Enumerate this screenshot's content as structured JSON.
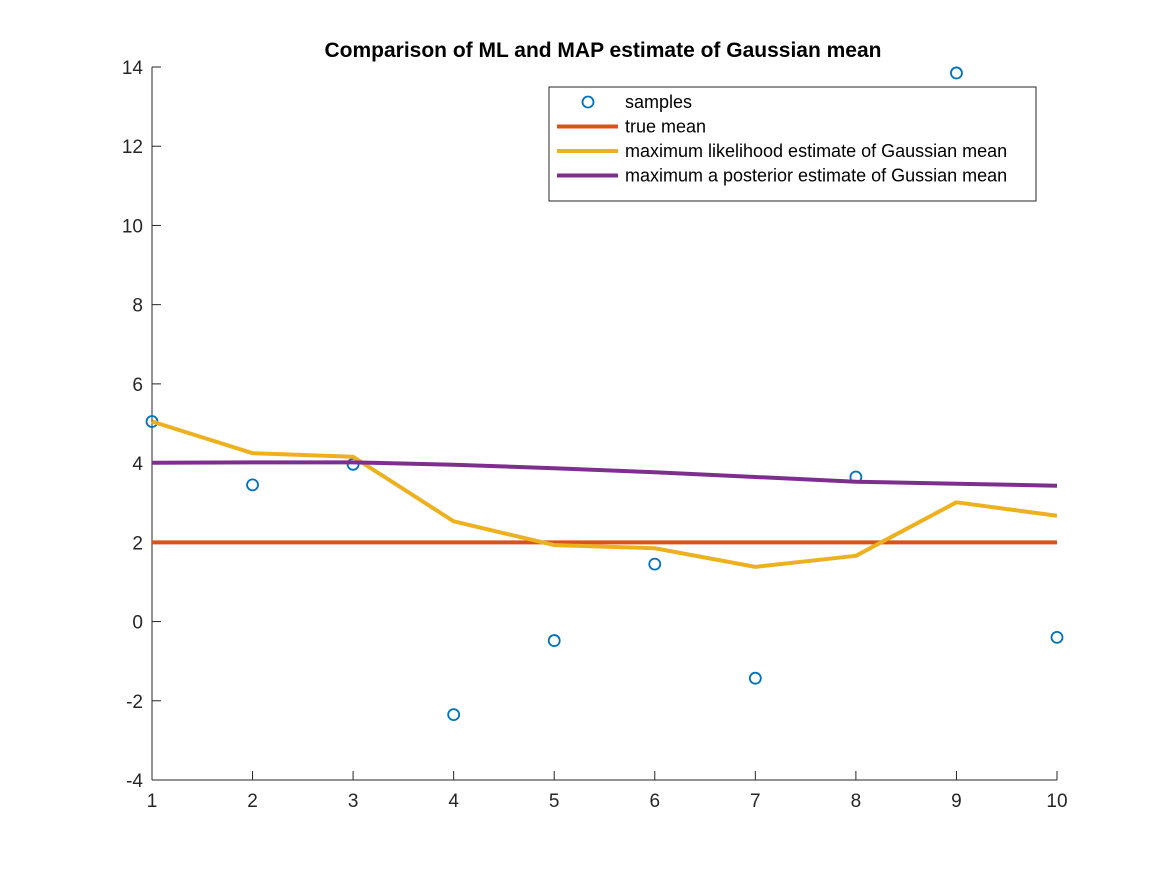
{
  "chart_data": {
    "type": "line",
    "title": "Comparison of ML and MAP estimate of Gaussian mean",
    "xlabel": "",
    "ylabel": "",
    "xlim": [
      1,
      10
    ],
    "ylim": [
      -4,
      14
    ],
    "xticks": [
      1,
      2,
      3,
      4,
      5,
      6,
      7,
      8,
      9,
      10
    ],
    "yticks": [
      -4,
      -2,
      0,
      2,
      4,
      6,
      8,
      10,
      12,
      14
    ],
    "grid": false,
    "legend_position": "top-right",
    "x": [
      1,
      2,
      3,
      4,
      5,
      6,
      7,
      8,
      9,
      10
    ],
    "series": [
      {
        "name": "samples",
        "style": "marker",
        "color": "#0072BD",
        "values": [
          5.05,
          3.45,
          3.97,
          -2.35,
          -0.48,
          1.45,
          -1.43,
          3.65,
          13.85,
          -0.4
        ]
      },
      {
        "name": "true mean",
        "style": "line",
        "color": "#D95319",
        "values": [
          2,
          2,
          2,
          2,
          2,
          2,
          2,
          2,
          2,
          2
        ]
      },
      {
        "name": "maximum likelihood estimate of Gaussian mean",
        "style": "line",
        "color": "#EDB120",
        "values": [
          5.05,
          4.25,
          4.16,
          2.53,
          1.93,
          1.85,
          1.38,
          1.66,
          3.01,
          2.67
        ]
      },
      {
        "name": "maximum a posterior estimate of Gussian mean",
        "style": "line",
        "color": "#7E2F8E",
        "values": [
          4.01,
          4.02,
          4.02,
          3.96,
          3.87,
          3.77,
          3.65,
          3.53,
          3.48,
          3.43
        ]
      }
    ]
  }
}
